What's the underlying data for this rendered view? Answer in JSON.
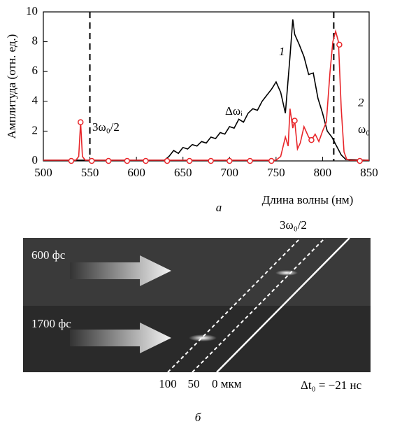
{
  "chart_data": {
    "type": "line",
    "x_label": "Длина волны (нм)",
    "y_label": "Амплитуда (отн. ед.)",
    "caption": "а",
    "xlim": [
      500,
      850
    ],
    "ylim": [
      0,
      10
    ],
    "xticks": [
      500,
      550,
      600,
      650,
      700,
      750,
      800,
      850
    ],
    "yticks": [
      0,
      2,
      4,
      6,
      8,
      10
    ],
    "vlines": [
      550,
      812
    ],
    "series": [
      {
        "name": "1",
        "color": "#000000",
        "x": [
          500,
          630,
          635,
          640,
          645,
          650,
          655,
          660,
          665,
          670,
          675,
          680,
          685,
          690,
          695,
          700,
          705,
          710,
          715,
          720,
          725,
          730,
          735,
          740,
          745,
          750,
          755,
          760,
          765,
          768,
          770,
          775,
          780,
          785,
          790,
          795,
          800,
          805,
          810,
          815,
          820,
          825,
          850
        ],
        "values": [
          0.05,
          0.05,
          0.3,
          0.7,
          0.5,
          0.9,
          0.8,
          1.1,
          1.0,
          1.3,
          1.2,
          1.6,
          1.5,
          1.9,
          1.8,
          2.3,
          2.2,
          2.8,
          2.6,
          3.2,
          3.5,
          3.4,
          4.0,
          4.4,
          4.8,
          5.3,
          4.6,
          3.2,
          7.0,
          9.5,
          8.5,
          7.8,
          7.0,
          5.8,
          5.9,
          4.2,
          3.2,
          2.0,
          1.6,
          1.0,
          0.4,
          0.1,
          0.05
        ]
      },
      {
        "name": "2",
        "color": "#e8262a",
        "x": [
          500,
          535,
          538,
          540,
          542,
          545,
          750,
          755,
          760,
          763,
          765,
          768,
          770,
          773,
          776,
          780,
          785,
          788,
          792,
          796,
          800,
          804,
          808,
          811,
          814,
          817,
          820,
          823,
          826,
          830,
          850
        ],
        "values": [
          0.05,
          0.05,
          0.3,
          2.6,
          0.3,
          0.05,
          0.05,
          0.3,
          1.6,
          1.0,
          3.5,
          2.2,
          2.7,
          0.8,
          1.2,
          2.3,
          1.6,
          1.4,
          1.8,
          1.3,
          2.0,
          2.6,
          6.0,
          8.0,
          8.7,
          8.0,
          3.5,
          0.6,
          0.1,
          0.05,
          0.05
        ]
      },
      {
        "color": "#e8262a",
        "markers": true,
        "x": [
          530,
          540,
          552,
          570,
          590,
          610,
          633,
          657,
          680,
          700,
          722,
          745,
          770,
          788,
          818,
          840
        ],
        "values": [
          0,
          2.6,
          0,
          0,
          0,
          0,
          0,
          0,
          0,
          0,
          0,
          0,
          2.7,
          1.4,
          7.8,
          0
        ]
      }
    ],
    "annotations": [
      "Δωᵢ",
      "3ω₀/2",
      "ω₀"
    ]
  },
  "image": {
    "top_label": "600 фс",
    "bottom_label": "1700 фс",
    "line_label": "3ω₀/2",
    "scale_labels": [
      "100",
      "50",
      "0 мкм"
    ],
    "delay": "Δt₀ = −21 нс",
    "caption": "б"
  }
}
